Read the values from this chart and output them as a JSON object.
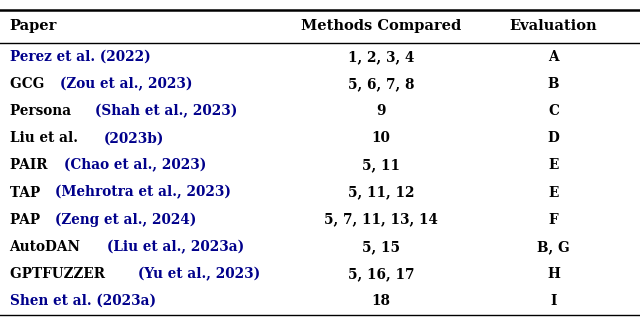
{
  "columns": [
    "Paper",
    "Methods Compared",
    "Evaluation"
  ],
  "rows": [
    {
      "paper_prefix": "",
      "paper_link": "Perez et al. (2022)",
      "methods": "1, 2, 3, 4",
      "evaluation": "A"
    },
    {
      "paper_prefix": "GCG ",
      "paper_link": "(Zou et al., 2023)",
      "methods": "5, 6, 7, 8",
      "evaluation": "B"
    },
    {
      "paper_prefix": "Persona ",
      "paper_link": "(Shah et al., 2023)",
      "methods": "9",
      "evaluation": "C"
    },
    {
      "paper_prefix": "Liu et al. ",
      "paper_link": "(2023b)",
      "methods": "10",
      "evaluation": "D"
    },
    {
      "paper_prefix": "PAIR ",
      "paper_link": "(Chao et al., 2023)",
      "methods": "5, 11",
      "evaluation": "E"
    },
    {
      "paper_prefix": "TAP ",
      "paper_link": "(Mehrotra et al., 2023)",
      "methods": "5, 11, 12",
      "evaluation": "E"
    },
    {
      "paper_prefix": "PAP ",
      "paper_link": "(Zeng et al., 2024)",
      "methods": "5, 7, 11, 13, 14",
      "evaluation": "F"
    },
    {
      "paper_prefix": "AutoDAN ",
      "paper_link": "(Liu et al., 2023a)",
      "methods": "5, 15",
      "evaluation": "B, G"
    },
    {
      "paper_prefix": "GPTFUZZER ",
      "paper_link": "(Yu et al., 2023)",
      "methods": "5, 16, 17",
      "evaluation": "H"
    },
    {
      "paper_prefix": "",
      "paper_link": "Shen et al. (2023a)",
      "methods": "18",
      "evaluation": "I"
    }
  ],
  "bg_color": "#ffffff",
  "header_color": "#000000",
  "link_color": "#00008B",
  "prefix_color": "#000000",
  "methods_color": "#000000",
  "eval_color": "#000000",
  "header_fontsize": 10.5,
  "row_fontsize": 9.8,
  "figwidth": 6.4,
  "figheight": 3.21,
  "dpi": 100
}
